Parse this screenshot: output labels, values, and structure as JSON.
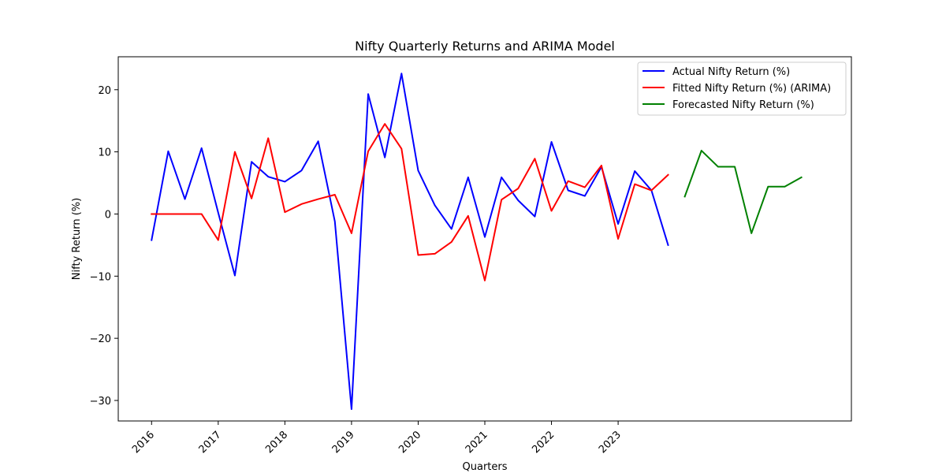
{
  "chart_data": {
    "type": "line",
    "title": "Nifty Quarterly Returns and ARIMA Model",
    "xlabel": "Quarters",
    "ylabel": "Nifty Return (%)",
    "x_tick_labels": [
      "2016",
      "2017",
      "2018",
      "2019",
      "2020",
      "2021",
      "2022",
      "2023"
    ],
    "y_ticks": [
      20,
      10,
      0,
      -10,
      -20,
      -30
    ],
    "y_tick_labels": [
      "20",
      "10",
      "0",
      "−10",
      "−20",
      "−30"
    ],
    "ylim": [
      -33.3,
      25.3
    ],
    "xlim_quarters": [
      -2,
      42
    ],
    "legend_position": "top-right",
    "series": [
      {
        "name": "Actual Nifty Return (%)",
        "color": "#0000ff",
        "start_quarter": 0,
        "values": [
          -4.2,
          10.1,
          2.4,
          10.6,
          0.2,
          -9.9,
          8.4,
          6.0,
          5.2,
          7.0,
          11.7,
          -1.2,
          -31.4,
          19.3,
          9.1,
          22.6,
          7.0,
          1.4,
          -2.4,
          5.9,
          -3.7,
          5.9,
          2.2,
          -0.4,
          11.6,
          3.8,
          2.9,
          7.6,
          -1.6,
          6.9,
          3.8,
          -5.0
        ]
      },
      {
        "name": "Fitted Nifty Return (%) (ARIMA)",
        "color": "#ff0000",
        "start_quarter": 0,
        "values": [
          0.0,
          0.0,
          0.0,
          0.0,
          -4.2,
          10.0,
          2.5,
          12.2,
          0.3,
          1.6,
          2.4,
          3.1,
          -3.1,
          10.1,
          14.5,
          10.5,
          -6.6,
          -6.4,
          -4.5,
          -0.3,
          -10.7,
          2.3,
          4.1,
          8.9,
          0.5,
          5.3,
          4.3,
          7.8,
          -4.0,
          4.8,
          3.8,
          6.3
        ]
      },
      {
        "name": "Forecasted Nifty Return (%)",
        "color": "#008000",
        "start_quarter": 32,
        "values": [
          2.8,
          10.2,
          7.6,
          7.6,
          -3.1,
          4.4,
          4.4,
          5.9
        ]
      }
    ]
  }
}
